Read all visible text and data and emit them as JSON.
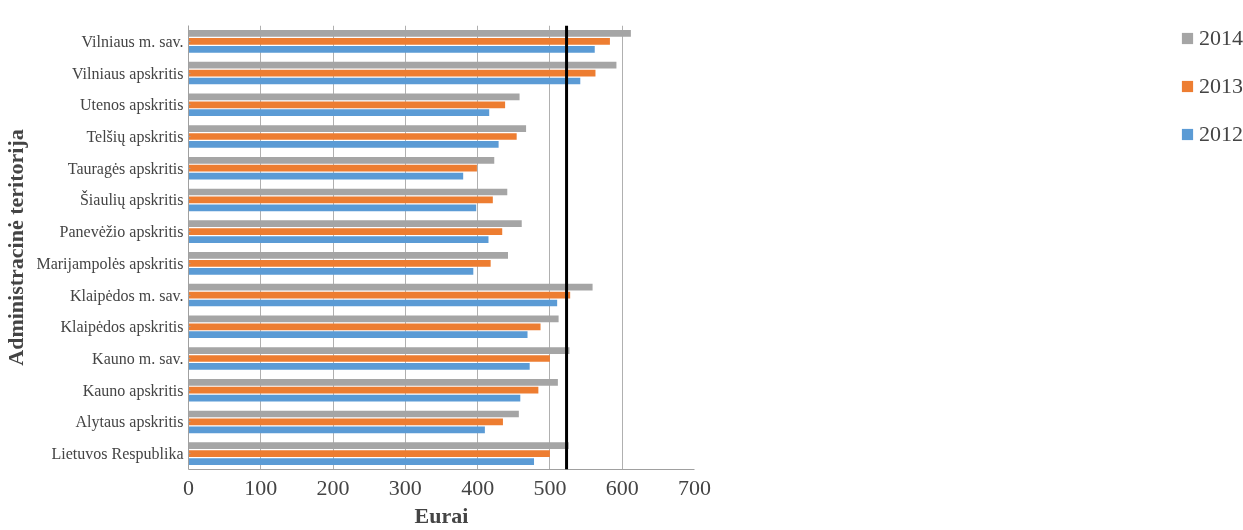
{
  "chart_data": {
    "type": "bar",
    "orientation": "horizontal",
    "xlabel": "Eurai",
    "ylabel": "Administracinė teritorija",
    "categories": [
      "Vilniaus m. sav.",
      "Vilniaus apskritis",
      "Utenos apskritis",
      "Telšių apskritis",
      "Tauragės apskritis",
      "Šiaulių apskritis",
      "Panevėžio apskritis",
      "Marijampolės apskritis",
      "Klaipėdos m. sav.",
      "Klaipėdos apskritis",
      "Kauno m. sav.",
      "Kauno apskritis",
      "Alytaus apskritis",
      "Lietuvos Respublika"
    ],
    "series": [
      {
        "name": "2014",
        "color": "#a5a5a5",
        "values": [
          612,
          592,
          458,
          467,
          423,
          441,
          461,
          442,
          559,
          512,
          527,
          511,
          457,
          526
        ]
      },
      {
        "name": "2013",
        "color": "#ed7d31",
        "values": [
          583,
          563,
          438,
          454,
          399,
          421,
          434,
          418,
          528,
          487,
          500,
          484,
          435,
          500
        ]
      },
      {
        "name": "2012",
        "color": "#5b9bd5",
        "values": [
          562,
          542,
          416,
          429,
          380,
          398,
          415,
          394,
          510,
          469,
          472,
          459,
          410,
          478
        ]
      }
    ],
    "xlim": [
      0,
      700
    ],
    "xticks": [
      0,
      100,
      200,
      300,
      400,
      500,
      600,
      700
    ],
    "grid": "x",
    "legend": "right",
    "ref_lines": [
      {
        "axis": "x",
        "value": 523,
        "color": "#000000"
      }
    ]
  }
}
